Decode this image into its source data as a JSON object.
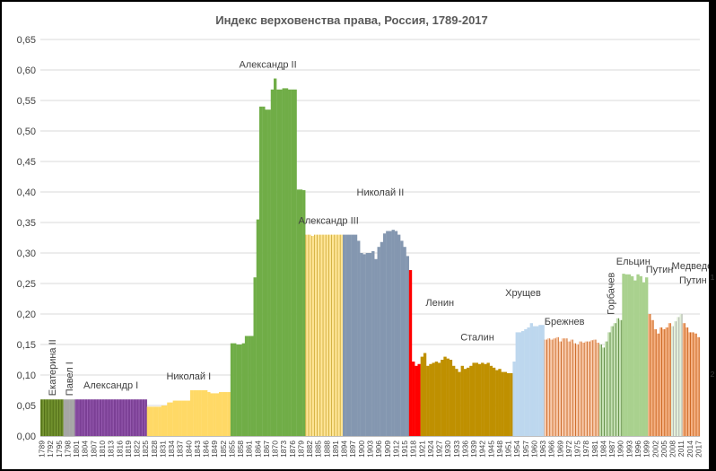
{
  "chart_data": {
    "type": "bar",
    "title": "Индекс верховенства права, Россия, 1789-2017",
    "xlabel": "",
    "ylabel": "",
    "ylim": [
      0,
      0.65
    ],
    "yticks": [
      "0,00",
      "0,05",
      "0,10",
      "0,15",
      "0,20",
      "0,25",
      "0,30",
      "0,35",
      "0,40",
      "0,45",
      "0,50",
      "0,55",
      "0,60",
      "0,65"
    ],
    "grid": true,
    "legend": "none",
    "x_start_year": 1789,
    "x_end_year": 2017,
    "xtick_labels": [
      "1789",
      "1792",
      "1795",
      "1798",
      "1801",
      "1804",
      "1807",
      "1810",
      "1813",
      "1816",
      "1819",
      "1822",
      "1825",
      "1828",
      "1831",
      "1834",
      "1837",
      "1840",
      "1843",
      "1846",
      "1849",
      "1852",
      "1855",
      "1858",
      "1861",
      "1864",
      "1867",
      "1870",
      "1873",
      "1876",
      "1879",
      "1882",
      "1885",
      "1888",
      "1891",
      "1894",
      "1897",
      "1900",
      "1903",
      "1906",
      "1909",
      "1912",
      "1915",
      "1918",
      "1921",
      "1924",
      "1927",
      "1930",
      "1933",
      "1936",
      "1939",
      "1942",
      "1945",
      "1948",
      "1951",
      "1954",
      "1957",
      "1960",
      "1963",
      "1966",
      "1969",
      "1972",
      "1975",
      "1978",
      "1981",
      "1984",
      "1987",
      "1990",
      "1993",
      "1996",
      "1999",
      "2002",
      "2005",
      "2008",
      "2011",
      "2014",
      "2017"
    ],
    "series": [
      {
        "name": "Екатерина II",
        "color": "#6f8f2b",
        "stripe": "#4d6a14",
        "label_rotated": true,
        "points": [
          [
            1789,
            0.06
          ],
          [
            1790,
            0.06
          ],
          [
            1791,
            0.06
          ],
          [
            1792,
            0.06
          ],
          [
            1793,
            0.06
          ],
          [
            1794,
            0.06
          ],
          [
            1795,
            0.06
          ],
          [
            1796,
            0.06
          ]
        ]
      },
      {
        "name": "Павел I",
        "color": "#a6a6a6",
        "stripe": "",
        "label_rotated": true,
        "points": [
          [
            1797,
            0.06
          ],
          [
            1798,
            0.06
          ],
          [
            1799,
            0.06
          ],
          [
            1800,
            0.06
          ]
        ]
      },
      {
        "name": "Александр I",
        "color": "#7b3f95",
        "stripe": "#9b5fb5",
        "points": [
          [
            1801,
            0.06
          ],
          [
            1802,
            0.06
          ],
          [
            1803,
            0.06
          ],
          [
            1804,
            0.06
          ],
          [
            1805,
            0.06
          ],
          [
            1806,
            0.06
          ],
          [
            1807,
            0.06
          ],
          [
            1808,
            0.06
          ],
          [
            1809,
            0.06
          ],
          [
            1810,
            0.06
          ],
          [
            1811,
            0.06
          ],
          [
            1812,
            0.06
          ],
          [
            1813,
            0.06
          ],
          [
            1814,
            0.06
          ],
          [
            1815,
            0.06
          ],
          [
            1816,
            0.06
          ],
          [
            1817,
            0.06
          ],
          [
            1818,
            0.06
          ],
          [
            1819,
            0.06
          ],
          [
            1820,
            0.06
          ],
          [
            1821,
            0.06
          ],
          [
            1822,
            0.06
          ],
          [
            1823,
            0.06
          ],
          [
            1824,
            0.06
          ],
          [
            1825,
            0.06
          ]
        ]
      },
      {
        "name": "Николай I",
        "color": "#ffd966",
        "stripe": "",
        "points": [
          [
            1826,
            0.048
          ],
          [
            1827,
            0.048
          ],
          [
            1828,
            0.048
          ],
          [
            1829,
            0.048
          ],
          [
            1830,
            0.048
          ],
          [
            1831,
            0.05
          ],
          [
            1832,
            0.05
          ],
          [
            1833,
            0.055
          ],
          [
            1834,
            0.055
          ],
          [
            1835,
            0.058
          ],
          [
            1836,
            0.058
          ],
          [
            1837,
            0.058
          ],
          [
            1838,
            0.058
          ],
          [
            1839,
            0.058
          ],
          [
            1840,
            0.058
          ],
          [
            1841,
            0.075
          ],
          [
            1842,
            0.075
          ],
          [
            1843,
            0.075
          ],
          [
            1844,
            0.075
          ],
          [
            1845,
            0.075
          ],
          [
            1846,
            0.075
          ],
          [
            1847,
            0.072
          ],
          [
            1848,
            0.07
          ],
          [
            1849,
            0.07
          ],
          [
            1850,
            0.07
          ],
          [
            1851,
            0.072
          ],
          [
            1852,
            0.072
          ],
          [
            1853,
            0.072
          ],
          [
            1854,
            0.072
          ]
        ]
      },
      {
        "name": "Александр II",
        "color": "#70ad47",
        "stripe": "",
        "points": [
          [
            1855,
            0.152
          ],
          [
            1856,
            0.152
          ],
          [
            1857,
            0.15
          ],
          [
            1858,
            0.15
          ],
          [
            1859,
            0.152
          ],
          [
            1860,
            0.164
          ],
          [
            1861,
            0.164
          ],
          [
            1862,
            0.164
          ],
          [
            1863,
            0.26
          ],
          [
            1864,
            0.355
          ],
          [
            1865,
            0.54
          ],
          [
            1866,
            0.54
          ],
          [
            1867,
            0.535
          ],
          [
            1868,
            0.535
          ],
          [
            1869,
            0.568
          ],
          [
            1870,
            0.586
          ],
          [
            1871,
            0.568
          ],
          [
            1872,
            0.568
          ],
          [
            1873,
            0.57
          ],
          [
            1874,
            0.57
          ],
          [
            1875,
            0.568
          ],
          [
            1876,
            0.568
          ],
          [
            1877,
            0.568
          ],
          [
            1878,
            0.404
          ],
          [
            1879,
            0.404
          ],
          [
            1880,
            0.403
          ]
        ]
      },
      {
        "name": "Александр III",
        "color": "#ffe699",
        "stripe": "#c9a227",
        "points": [
          [
            1881,
            0.33
          ],
          [
            1882,
            0.33
          ],
          [
            1883,
            0.328
          ],
          [
            1884,
            0.33
          ],
          [
            1885,
            0.33
          ],
          [
            1886,
            0.33
          ],
          [
            1887,
            0.33
          ],
          [
            1888,
            0.33
          ],
          [
            1889,
            0.33
          ],
          [
            1890,
            0.33
          ],
          [
            1891,
            0.33
          ],
          [
            1892,
            0.33
          ],
          [
            1893,
            0.33
          ]
        ]
      },
      {
        "name": "Николай II",
        "color": "#8497b0",
        "stripe": "",
        "points": [
          [
            1894,
            0.33
          ],
          [
            1895,
            0.33
          ],
          [
            1896,
            0.33
          ],
          [
            1897,
            0.33
          ],
          [
            1898,
            0.33
          ],
          [
            1899,
            0.32
          ],
          [
            1900,
            0.3
          ],
          [
            1901,
            0.298
          ],
          [
            1902,
            0.3
          ],
          [
            1903,
            0.3
          ],
          [
            1904,
            0.303
          ],
          [
            1905,
            0.29
          ],
          [
            1906,
            0.31
          ],
          [
            1907,
            0.318
          ],
          [
            1908,
            0.332
          ],
          [
            1909,
            0.336
          ],
          [
            1910,
            0.336
          ],
          [
            1911,
            0.338
          ],
          [
            1912,
            0.336
          ],
          [
            1913,
            0.33
          ],
          [
            1914,
            0.32
          ],
          [
            1915,
            0.31
          ],
          [
            1916,
            0.295
          ]
        ]
      },
      {
        "name": "Ленин",
        "color": "#ff0000",
        "stripe": "",
        "points": [
          [
            1917,
            0.272
          ],
          [
            1918,
            0.122
          ],
          [
            1919,
            0.115
          ],
          [
            1920,
            0.118
          ]
        ]
      },
      {
        "name": "Сталин",
        "color": "#bf9000",
        "stripe": "",
        "points": [
          [
            1921,
            0.13
          ],
          [
            1922,
            0.136
          ],
          [
            1923,
            0.115
          ],
          [
            1924,
            0.118
          ],
          [
            1925,
            0.12
          ],
          [
            1926,
            0.122
          ],
          [
            1927,
            0.12
          ],
          [
            1928,
            0.125
          ],
          [
            1929,
            0.13
          ],
          [
            1930,
            0.127
          ],
          [
            1931,
            0.125
          ],
          [
            1932,
            0.115
          ],
          [
            1933,
            0.11
          ],
          [
            1934,
            0.105
          ],
          [
            1935,
            0.115
          ],
          [
            1936,
            0.11
          ],
          [
            1937,
            0.112
          ],
          [
            1938,
            0.115
          ],
          [
            1939,
            0.12
          ],
          [
            1940,
            0.12
          ],
          [
            1941,
            0.118
          ],
          [
            1942,
            0.12
          ],
          [
            1943,
            0.118
          ],
          [
            1944,
            0.12
          ],
          [
            1945,
            0.115
          ],
          [
            1946,
            0.112
          ],
          [
            1947,
            0.108
          ],
          [
            1948,
            0.11
          ],
          [
            1949,
            0.105
          ],
          [
            1950,
            0.105
          ],
          [
            1951,
            0.103
          ],
          [
            1952,
            0.103
          ]
        ]
      },
      {
        "name": "Хрущев",
        "color": "#bdd7ee",
        "stripe": "",
        "points": [
          [
            1953,
            0.122
          ],
          [
            1954,
            0.17
          ],
          [
            1955,
            0.17
          ],
          [
            1956,
            0.172
          ],
          [
            1957,
            0.175
          ],
          [
            1958,
            0.178
          ],
          [
            1959,
            0.185
          ],
          [
            1960,
            0.18
          ],
          [
            1961,
            0.18
          ],
          [
            1962,
            0.182
          ],
          [
            1963,
            0.182
          ]
        ]
      },
      {
        "name": "Брежнев",
        "color": "#f8cbad",
        "stripe": "#c55a11",
        "points": [
          [
            1964,
            0.158
          ],
          [
            1965,
            0.16
          ],
          [
            1966,
            0.158
          ],
          [
            1967,
            0.16
          ],
          [
            1968,
            0.162
          ],
          [
            1969,
            0.155
          ],
          [
            1970,
            0.16
          ],
          [
            1971,
            0.16
          ],
          [
            1972,
            0.155
          ],
          [
            1973,
            0.158
          ],
          [
            1974,
            0.152
          ],
          [
            1975,
            0.15
          ],
          [
            1976,
            0.155
          ],
          [
            1977,
            0.153
          ],
          [
            1978,
            0.155
          ],
          [
            1979,
            0.155
          ],
          [
            1980,
            0.157
          ],
          [
            1981,
            0.158
          ],
          [
            1982,
            0.153
          ]
        ]
      },
      {
        "name": "Горбачев",
        "color": "#c5e0b4",
        "stripe": "#548235",
        "label_rotated": true,
        "points": [
          [
            1983,
            0.15
          ],
          [
            1984,
            0.145
          ],
          [
            1985,
            0.155
          ],
          [
            1986,
            0.17
          ],
          [
            1987,
            0.18
          ],
          [
            1988,
            0.185
          ],
          [
            1989,
            0.193
          ],
          [
            1990,
            0.19
          ]
        ]
      },
      {
        "name": "Ельцин",
        "color": "#a9d18e",
        "stripe": "",
        "points": [
          [
            1991,
            0.266
          ],
          [
            1992,
            0.265
          ],
          [
            1993,
            0.265
          ],
          [
            1994,
            0.262
          ],
          [
            1995,
            0.255
          ],
          [
            1996,
            0.265
          ],
          [
            1997,
            0.262
          ],
          [
            1998,
            0.252
          ],
          [
            1999,
            0.26
          ]
        ]
      },
      {
        "name": "Путин",
        "color": "#f4b183",
        "stripe": "#c55a11",
        "points": [
          [
            2000,
            0.2
          ],
          [
            2001,
            0.19
          ],
          [
            2002,
            0.175
          ],
          [
            2003,
            0.168
          ],
          [
            2004,
            0.178
          ],
          [
            2005,
            0.175
          ],
          [
            2006,
            0.178
          ],
          [
            2007,
            0.185
          ]
        ]
      },
      {
        "name": "Медведев",
        "color": "#e2efd9",
        "stripe": "#a6a6a6",
        "points": [
          [
            2008,
            0.18
          ],
          [
            2009,
            0.188
          ],
          [
            2010,
            0.195
          ],
          [
            2011,
            0.2
          ]
        ]
      },
      {
        "name": "Путин",
        "color": "#f4b183",
        "stripe": "#c55a11",
        "points": [
          [
            2012,
            0.185
          ],
          [
            2013,
            0.178
          ],
          [
            2014,
            0.17
          ],
          [
            2015,
            0.17
          ],
          [
            2016,
            0.168
          ],
          [
            2017,
            0.162
          ]
        ]
      }
    ]
  },
  "side_ruler": [
    "1",
    "2"
  ]
}
